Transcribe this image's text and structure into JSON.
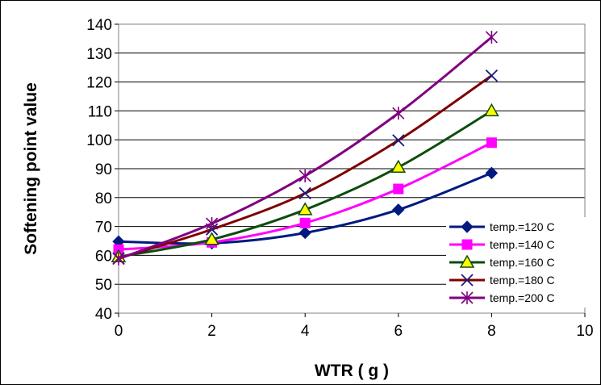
{
  "chart_data": {
    "type": "line",
    "title": "",
    "xlabel": "WTR ( g )",
    "ylabel": "Softening point value",
    "xlim": [
      0,
      10
    ],
    "ylim": [
      40,
      140
    ],
    "xticks": [
      0,
      2,
      4,
      6,
      8,
      10
    ],
    "yticks": [
      40,
      50,
      60,
      70,
      80,
      90,
      100,
      110,
      120,
      130,
      140
    ],
    "grid": "horizontal",
    "legend_position": "bottom-right",
    "series": [
      {
        "name": "temp.=120 C",
        "color": "#001a7f",
        "marker": "diamond",
        "x": [
          0,
          2,
          4,
          6,
          8
        ],
        "values": [
          64.8,
          64.2,
          67.8,
          75.8,
          88.5
        ]
      },
      {
        "name": "temp.=140 C",
        "color": "#ff00ff",
        "marker": "square",
        "x": [
          0,
          2,
          4,
          6,
          8
        ],
        "values": [
          62.0,
          64.5,
          71.2,
          83.0,
          99.0
        ]
      },
      {
        "name": "temp.=160 C",
        "color": "#0d4d0d",
        "marker": "triangle",
        "x": [
          0,
          2,
          4,
          6,
          8
        ],
        "values": [
          59.5,
          65.5,
          75.8,
          90.5,
          110.0
        ]
      },
      {
        "name": "temp.=180 C",
        "color": "#7f0000",
        "marker": "x",
        "x": [
          0,
          2,
          4,
          6,
          8
        ],
        "values": [
          59.0,
          69.0,
          81.5,
          99.8,
          122.2
        ]
      },
      {
        "name": "temp.=200 C",
        "color": "#7f007f",
        "marker": "star",
        "x": [
          0,
          2,
          4,
          6,
          8
        ],
        "values": [
          58.8,
          71.0,
          87.5,
          109.2,
          135.5
        ]
      }
    ]
  }
}
